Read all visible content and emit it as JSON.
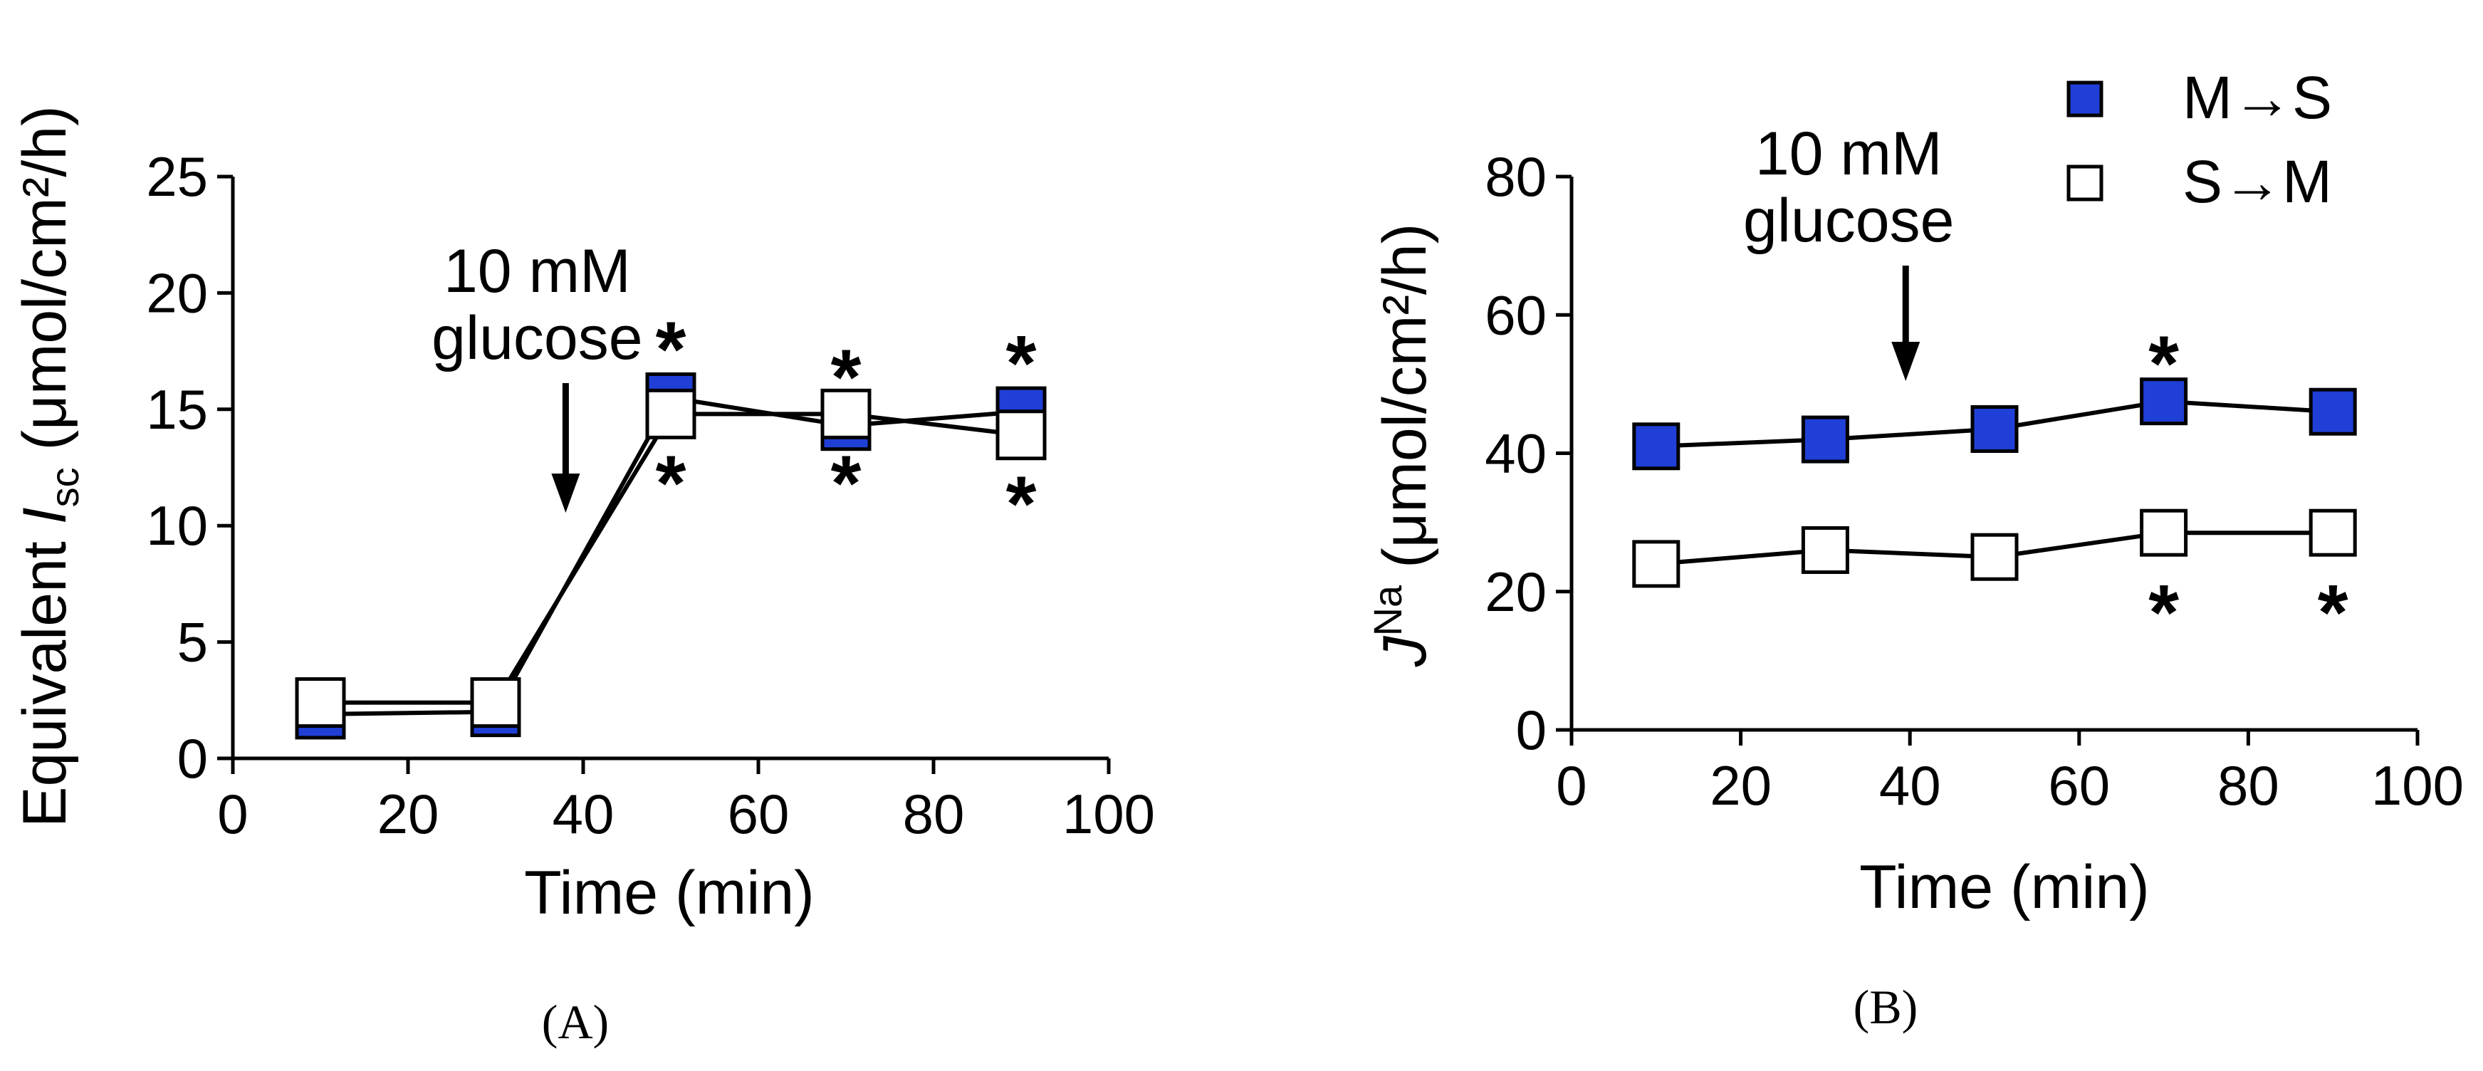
{
  "chart_data": [
    {
      "panel": "(A)",
      "type": "line",
      "xlabel": "Time (min)",
      "ylabel_main": "Equivalent ",
      "ylabel_italic": "I",
      "ylabel_sub": "sc",
      "ylabel_unit": " (μmol/cm²/h)",
      "xlim": [
        0,
        100
      ],
      "ylim": [
        0,
        25
      ],
      "xticks": [
        0,
        20,
        40,
        60,
        80,
        100
      ],
      "yticks": [
        0,
        5,
        10,
        15,
        20,
        25
      ],
      "annotation": {
        "lines": [
          "10 mM",
          "glucose"
        ],
        "x": 38
      },
      "series": [
        {
          "marker": "filled-square",
          "color": "#1f3fd6",
          "x": [
            10,
            30,
            50,
            70,
            90
          ],
          "y": [
            1.9,
            2.0,
            15.5,
            14.3,
            14.9
          ],
          "err": [
            0,
            0,
            0.7,
            0.7,
            0.8
          ],
          "stars": [
            "",
            "",
            "*",
            "*",
            "*"
          ]
        },
        {
          "marker": "open-square",
          "color": "#ffffff",
          "x": [
            10,
            30,
            50,
            70,
            90
          ],
          "y": [
            2.4,
            2.4,
            14.8,
            14.8,
            13.9
          ],
          "err": [
            0,
            0,
            0.9,
            0.7,
            0.9
          ],
          "stars": [
            "",
            "",
            "*",
            "*",
            "*"
          ]
        }
      ]
    },
    {
      "panel": "(B)",
      "type": "line",
      "xlabel": "Time (min)",
      "ylabel_italic": "J",
      "ylabel_sup": "Na",
      "ylabel_unit": " (μmol/cm²/h)",
      "xlim": [
        0,
        100
      ],
      "ylim": [
        0,
        80
      ],
      "xticks": [
        0,
        20,
        40,
        60,
        80,
        100
      ],
      "yticks": [
        0,
        20,
        40,
        60,
        80
      ],
      "annotation": {
        "lines": [
          "10 mM",
          "glucose"
        ],
        "x": 39.5
      },
      "legend": [
        "M→S",
        "S→M"
      ],
      "series": [
        {
          "name": "M→S",
          "marker": "filled-square",
          "color": "#1f3fd6",
          "x": [
            10,
            30,
            50,
            70,
            90
          ],
          "y": [
            41,
            42,
            43.5,
            47.5,
            46
          ],
          "stars": [
            "",
            "",
            "",
            "*",
            ""
          ]
        },
        {
          "name": "S→M",
          "marker": "open-square",
          "color": "#ffffff",
          "x": [
            10,
            30,
            50,
            70,
            90
          ],
          "y": [
            24,
            26,
            25,
            28.5,
            28.5
          ],
          "stars": [
            "",
            "",
            "",
            "*",
            "*"
          ]
        }
      ]
    }
  ]
}
